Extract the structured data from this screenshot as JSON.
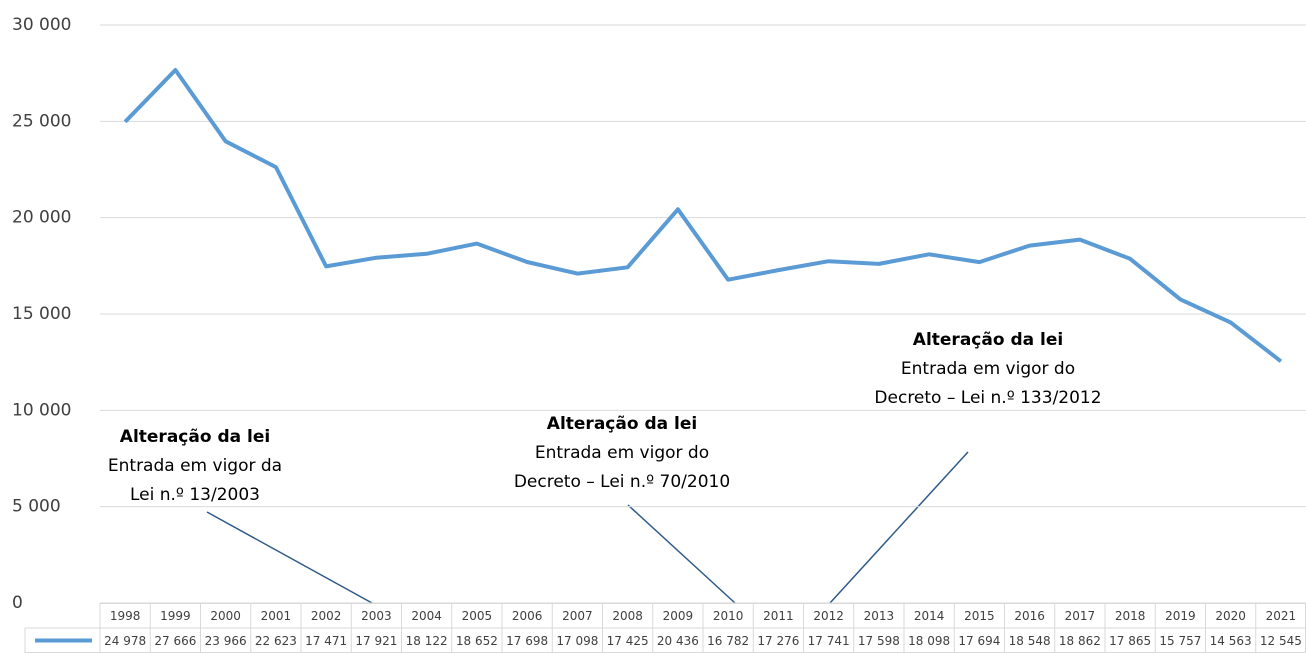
{
  "chart_data": {
    "type": "line",
    "categories": [
      "1998",
      "1999",
      "2000",
      "2001",
      "2002",
      "2003",
      "2004",
      "2005",
      "2006",
      "2007",
      "2008",
      "2009",
      "2010",
      "2011",
      "2012",
      "2013",
      "2014",
      "2015",
      "2016",
      "2017",
      "2018",
      "2019",
      "2020",
      "2021"
    ],
    "series": [
      {
        "color": "#5b9bd5",
        "values": [
          24978,
          27666,
          23966,
          22623,
          17471,
          17921,
          18122,
          18652,
          17698,
          17098,
          17425,
          20436,
          16782,
          17276,
          17741,
          17598,
          18098,
          17694,
          18548,
          18862,
          17865,
          15757,
          14563,
          12545
        ],
        "value_labels": [
          "24 978",
          "27 666",
          "23 966",
          "22 623",
          "17 471",
          "17 921",
          "18 122",
          "18 652",
          "17 698",
          "17 098",
          "17 425",
          "20 436",
          "16 782",
          "17 276",
          "17 741",
          "17 598",
          "18 098",
          "17 694",
          "18 548",
          "18 862",
          "17 865",
          "15 757",
          "14 563",
          "12 545"
        ]
      }
    ],
    "ylim": [
      0,
      30000
    ],
    "yticks": [
      0,
      {
        "value": 5000,
        "label": "5 000"
      },
      {
        "value": 10000,
        "label": "10 000"
      },
      {
        "value": 15000,
        "label": "15 000"
      },
      {
        "value": 20000,
        "label": "20 000"
      },
      {
        "value": 25000,
        "label": "25 000"
      },
      {
        "value": 30000,
        "label": "30 000"
      }
    ],
    "grid": true,
    "annotations": [
      {
        "title": "Alteração da lei",
        "lines": [
          "Entrada em vigor da",
          "Lei n.º 13/2003"
        ]
      },
      {
        "title": "Alteração da lei",
        "lines": [
          "Entrada em vigor do",
          "Decreto – Lei n.º 70/2010"
        ]
      },
      {
        "title": "Alteração da lei",
        "lines": [
          "Entrada em vigor do",
          "Decreto – Lei n.º 133/2012"
        ]
      }
    ]
  }
}
